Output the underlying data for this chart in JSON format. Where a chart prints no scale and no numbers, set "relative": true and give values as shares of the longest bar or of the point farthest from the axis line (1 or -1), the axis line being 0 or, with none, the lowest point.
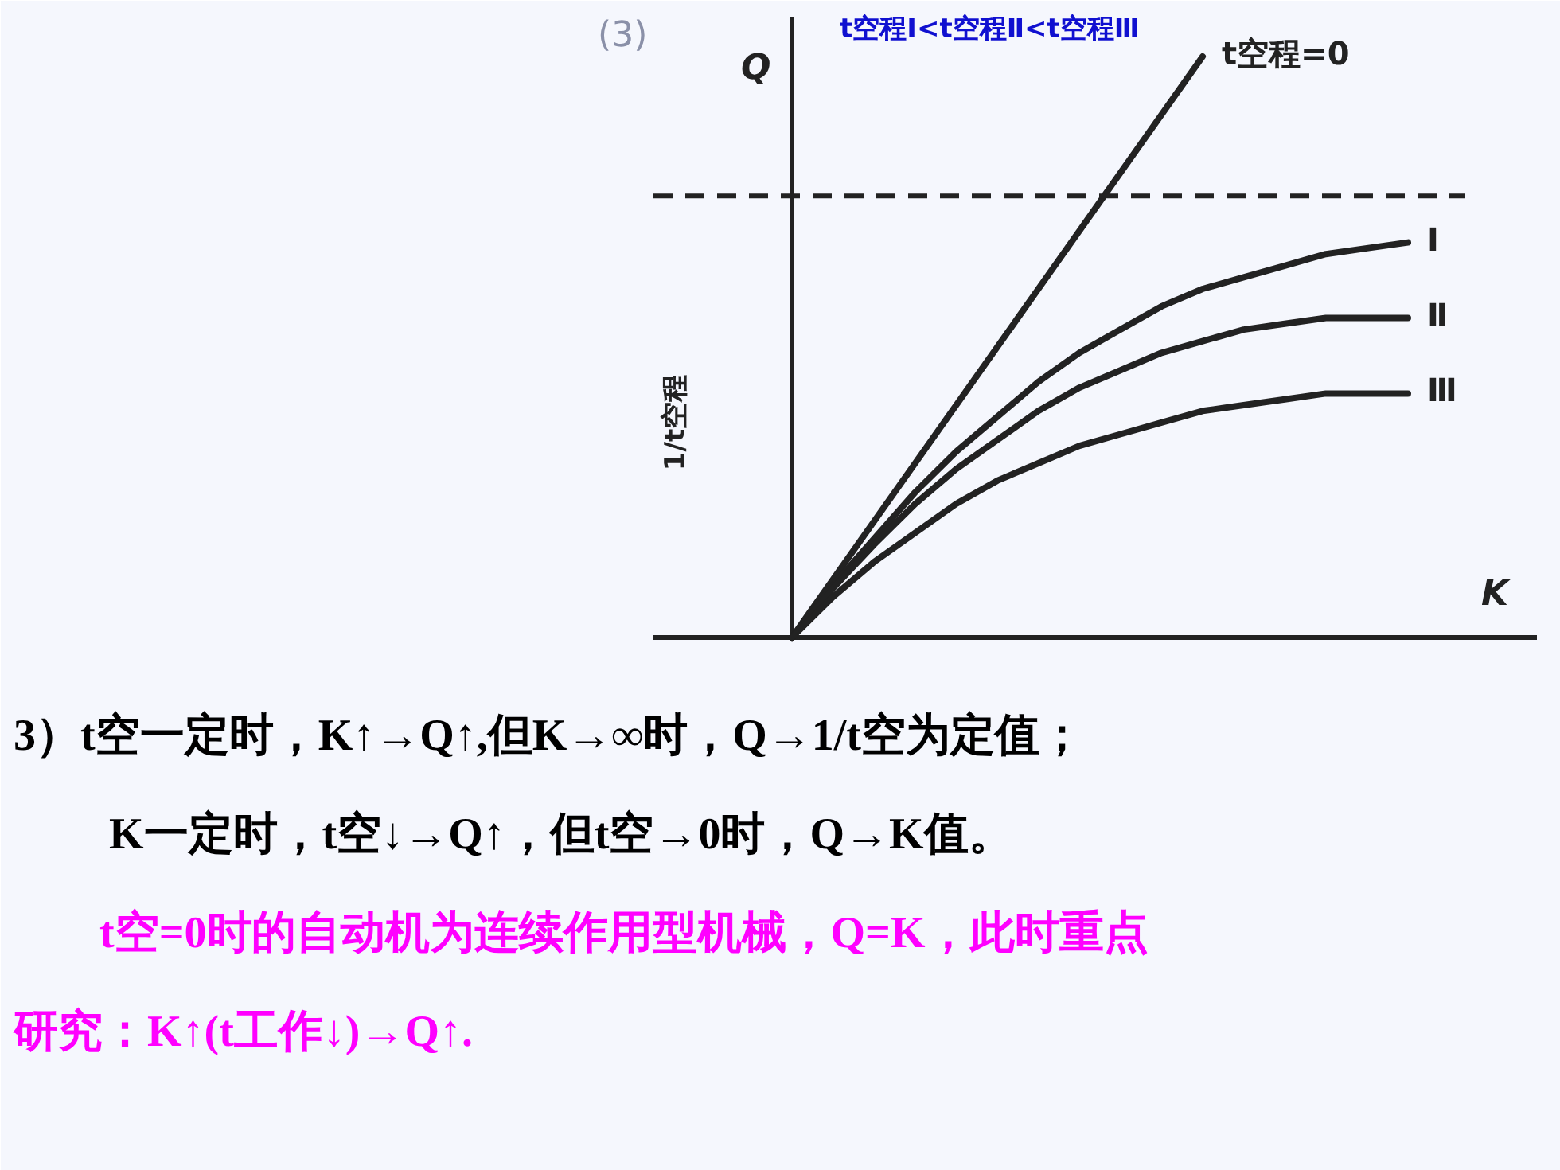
{
  "chart_data": {
    "type": "line",
    "relative": true,
    "xlabel": "K",
    "ylabel": "Q",
    "categories": [
      null,
      null,
      null,
      null,
      null,
      null,
      null,
      null,
      null,
      null,
      null,
      null,
      null,
      null,
      null,
      null
    ],
    "series": [
      {
        "name": "t空程=0",
        "color": "#222222",
        "values": [
          0,
          0.1,
          0.2,
          0.3,
          0.4,
          0.5,
          0.6,
          0.7,
          0.8,
          0.9,
          1.0,
          null,
          null,
          null,
          null,
          null
        ]
      },
      {
        "name": "Ⅰ",
        "color": "#222222",
        "values": [
          0,
          0.09,
          0.17,
          0.25,
          0.32,
          0.38,
          0.44,
          0.49,
          0.53,
          0.57,
          0.6,
          0.62,
          0.64,
          0.66,
          0.67,
          0.68
        ]
      },
      {
        "name": "Ⅱ",
        "color": "#222222",
        "values": [
          0,
          0.085,
          0.16,
          0.23,
          0.29,
          0.34,
          0.39,
          0.43,
          0.46,
          0.49,
          0.51,
          0.53,
          0.54,
          0.55,
          0.55,
          0.55
        ]
      },
      {
        "name": "Ⅲ",
        "color": "#222222",
        "values": [
          0,
          0.07,
          0.13,
          0.18,
          0.23,
          0.27,
          0.3,
          0.33,
          0.35,
          0.37,
          0.39,
          0.4,
          0.41,
          0.42,
          0.42,
          0.42
        ]
      }
    ],
    "ref_lines": [
      {
        "axis": "y",
        "value": 0.76,
        "line_style": "dashed",
        "color": "#222222"
      }
    ],
    "annotations": [
      "(3)",
      "1/t空程",
      "t空程Ⅰ<t空程Ⅱ<t空程Ⅲ",
      "3）t空一定时，K↑→Q↑,但K→∞时，Q→1/t空为定值；",
      "K一定时，t空↓→Q↑，但t空→0时，Q→K值。",
      "t空=0时的自动机为连续作用型机械，Q=K，此时重点",
      "研究：K↑(t工作↓)→Q↑."
    ]
  }
}
